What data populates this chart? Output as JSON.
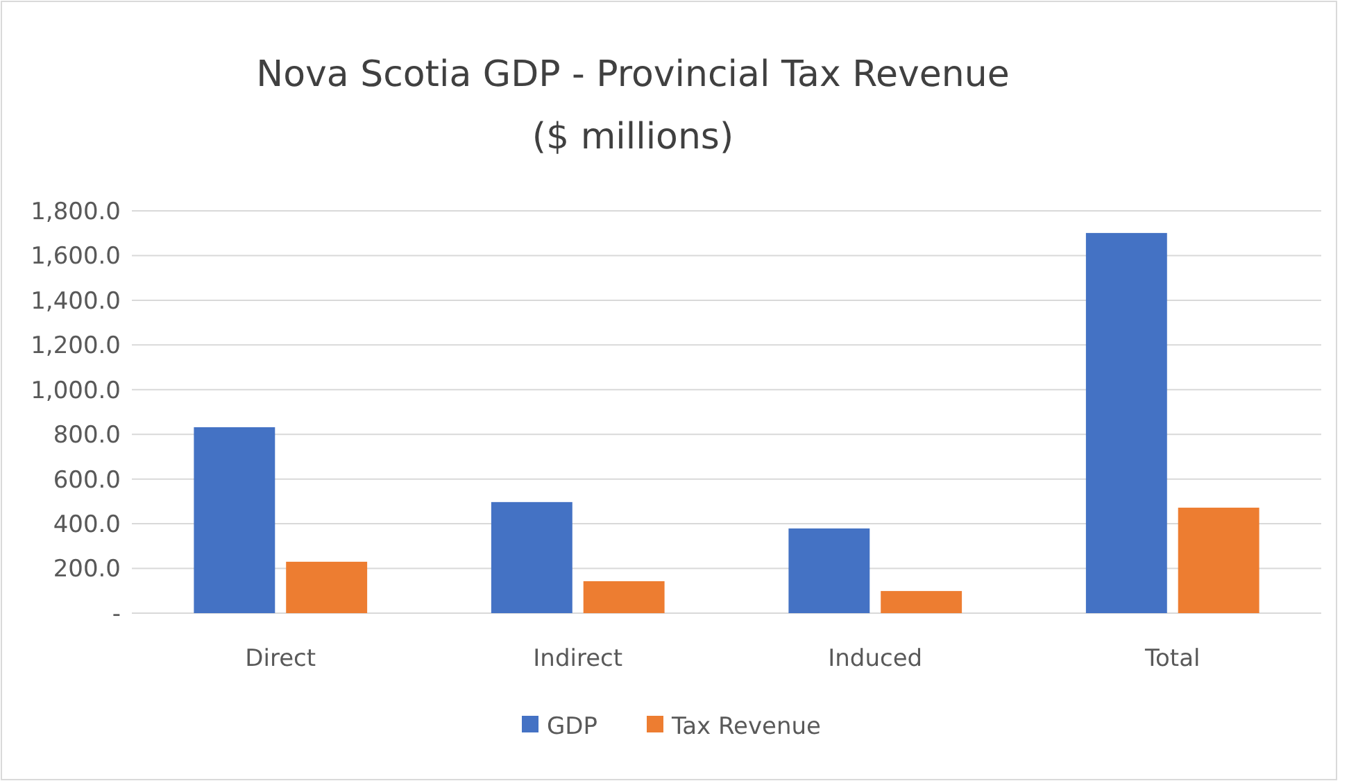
{
  "chart_data": {
    "type": "bar",
    "title": "Nova Scotia GDP - Provincial Tax Revenue",
    "subtitle": "($ millions)",
    "categories": [
      "Direct",
      "Indirect",
      "Induced",
      "Total"
    ],
    "series": [
      {
        "name": "GDP",
        "color": "#4472c4",
        "values": [
          832,
          497,
          379,
          1701
        ]
      },
      {
        "name": "Tax Revenue",
        "color": "#ed7d31",
        "values": [
          230,
          143,
          99,
          472
        ]
      }
    ],
    "ylim": [
      0,
      1800
    ],
    "yticks": [
      {
        "value": 0,
        "label": "-"
      },
      {
        "value": 200,
        "label": "200.0"
      },
      {
        "value": 400,
        "label": "400.0"
      },
      {
        "value": 600,
        "label": "600.0"
      },
      {
        "value": 800,
        "label": "800.0"
      },
      {
        "value": 1000,
        "label": "1,000.0"
      },
      {
        "value": 1200,
        "label": "1,200.0"
      },
      {
        "value": 1400,
        "label": "1,400.0"
      },
      {
        "value": 1600,
        "label": "1,600.0"
      },
      {
        "value": 1800,
        "label": "1,800.0"
      }
    ],
    "grid": "y",
    "legend": "bottom"
  }
}
